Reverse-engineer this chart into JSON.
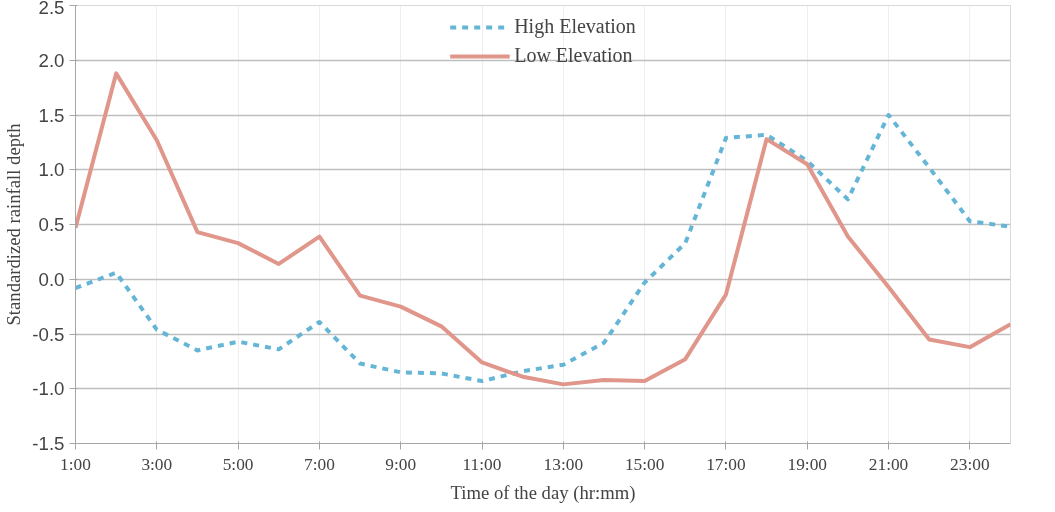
{
  "chart_data": {
    "type": "line",
    "xlabel": "Time of the day (hr:mm)",
    "ylabel": "Standardized rainfall depth",
    "x": [
      1,
      2,
      3,
      4,
      5,
      6,
      7,
      8,
      9,
      10,
      11,
      12,
      13,
      14,
      15,
      16,
      17,
      18,
      19,
      20,
      21,
      22,
      23,
      24
    ],
    "series": [
      {
        "name": "High Elevation",
        "color": "#65b6d6",
        "line_style": "dashed",
        "values": [
          -0.08,
          0.06,
          -0.46,
          -0.65,
          -0.57,
          -0.64,
          -0.39,
          -0.77,
          -0.85,
          -0.86,
          -0.93,
          -0.84,
          -0.78,
          -0.58,
          -0.03,
          0.33,
          1.29,
          1.32,
          1.08,
          0.73,
          1.5,
          1.02,
          0.53,
          0.48
        ]
      },
      {
        "name": "Low Elevation",
        "color": "#e0968a",
        "line_style": "solid",
        "values": [
          0.47,
          1.88,
          1.27,
          0.43,
          0.33,
          0.14,
          0.39,
          -0.15,
          -0.25,
          -0.43,
          -0.76,
          -0.89,
          -0.96,
          -0.92,
          -0.93,
          -0.73,
          -0.14,
          1.28,
          1.05,
          0.39,
          -0.07,
          -0.55,
          -0.62,
          -0.41
        ]
      }
    ],
    "xlim": [
      1,
      24
    ],
    "xticks": [
      {
        "value": 1,
        "label": "1:00"
      },
      {
        "value": 3,
        "label": "3:00"
      },
      {
        "value": 5,
        "label": "5:00"
      },
      {
        "value": 7,
        "label": "7:00"
      },
      {
        "value": 9,
        "label": "9:00"
      },
      {
        "value": 11,
        "label": "11:00"
      },
      {
        "value": 13,
        "label": "13:00"
      },
      {
        "value": 15,
        "label": "15:00"
      },
      {
        "value": 17,
        "label": "17:00"
      },
      {
        "value": 19,
        "label": "19:00"
      },
      {
        "value": 21,
        "label": "21:00"
      },
      {
        "value": 23,
        "label": "23:00"
      }
    ],
    "ylim": [
      -1.5,
      2.5
    ],
    "yticks": [
      {
        "value": -1.5,
        "label": "-1.5"
      },
      {
        "value": -1,
        "label": "-1.0"
      },
      {
        "value": -0.5,
        "label": "-0.5"
      },
      {
        "value": 0,
        "label": "0.0"
      },
      {
        "value": 0.5,
        "label": "0.5"
      },
      {
        "value": 1,
        "label": "1.0"
      },
      {
        "value": 1.5,
        "label": "1.5"
      },
      {
        "value": 2,
        "label": "2.0"
      },
      {
        "value": 2.5,
        "label": "2.5"
      }
    ],
    "grid": true,
    "legend": "top",
    "marker": "none"
  }
}
